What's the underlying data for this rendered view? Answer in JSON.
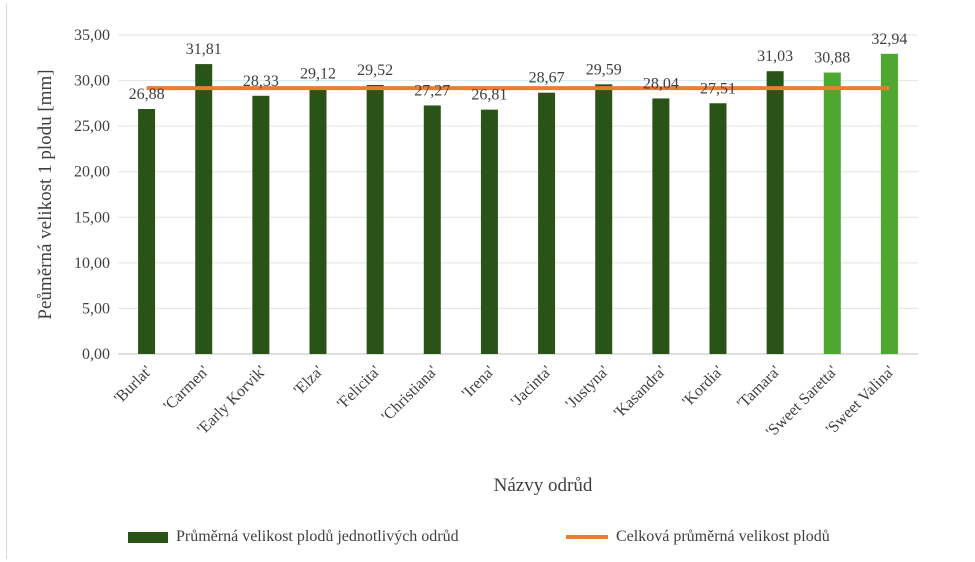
{
  "chart_data": {
    "type": "bar",
    "title": "",
    "xlabel": "Názvy odrůd",
    "ylabel": "Peůměrná velikost 1 plodu [mm]",
    "ylim": [
      0,
      35
    ],
    "yticks": [
      "0,00",
      "5,00",
      "10,00",
      "15,00",
      "20,00",
      "25,00",
      "30,00",
      "35,00"
    ],
    "categories": [
      "'Burlat'",
      "'Carmen'",
      "'Early Korvik'",
      "'Elza'",
      "'Felicita'",
      "'Christiana'",
      "'Irena'",
      "'Jacinta'",
      "'Justyna'",
      "'Kasandra'",
      "'Kordia'",
      "'Tamara'",
      "'Sweet Saretta'",
      "'Sweet Valina'"
    ],
    "values": [
      26.88,
      31.81,
      28.33,
      29.12,
      29.52,
      27.27,
      26.81,
      28.67,
      29.59,
      28.04,
      27.51,
      31.03,
      30.88,
      32.94
    ],
    "value_labels": [
      "26,88",
      "31,81",
      "28,33",
      "29,12",
      "29,52",
      "27,27",
      "26,81",
      "28,67",
      "29,59",
      "28,04",
      "27,51",
      "31,03",
      "30,88",
      "32,94"
    ],
    "bar_colors": [
      "#2a5417",
      "#2a5417",
      "#2a5417",
      "#2a5417",
      "#2a5417",
      "#2a5417",
      "#2a5417",
      "#2a5417",
      "#2a5417",
      "#2a5417",
      "#2a5417",
      "#2a5417",
      "#4ea72e",
      "#4ea72e"
    ],
    "series": [
      {
        "name": "Průměrná velikost plodů jednotlivých odrůd",
        "kind": "bar",
        "color": "#2a5417"
      },
      {
        "name": "Celková průměrná velikost plodů",
        "kind": "line",
        "color": "#ec7c30",
        "value": 29.17
      }
    ],
    "grid": true,
    "legend_position": "bottom"
  }
}
